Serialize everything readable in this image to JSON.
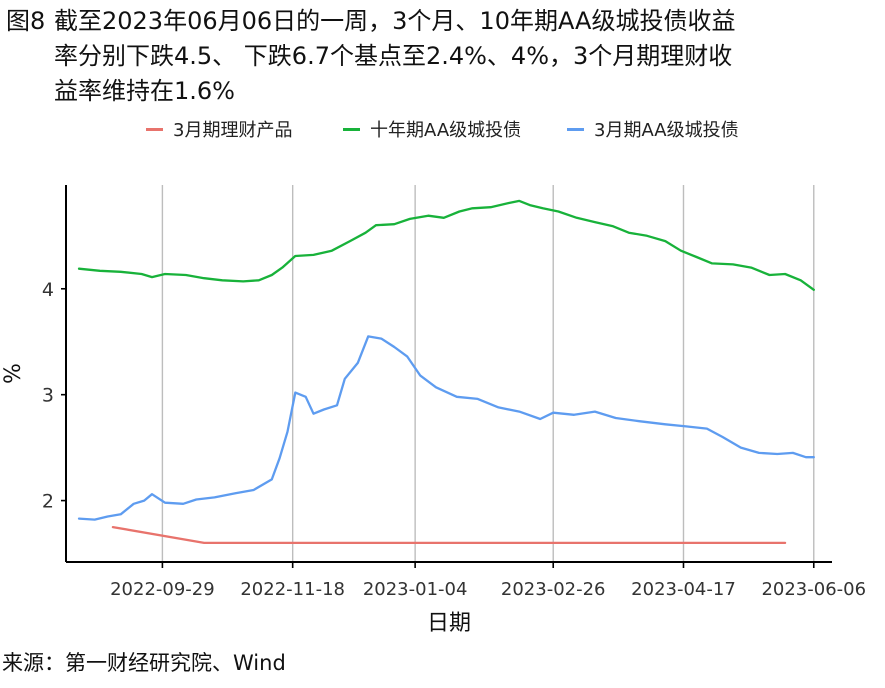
{
  "title": {
    "fig_num": "图8",
    "line1": "截至2023年06月06日的一周，3个月、10年期AA级城投债收益",
    "line2": "率分别下跌4.5、 下跌6.7个基点至2.4%、4%，3个月期理财收",
    "line3": "益率维持在1.6%"
  },
  "source": "来源：第一财经研究院、Wind",
  "chart_data": {
    "type": "line",
    "xlabel": "日期",
    "ylabel": "%",
    "x_ticks": [
      "2022-09-29",
      "2022-11-18",
      "2023-01-04",
      "2023-02-26",
      "2023-04-17",
      "2023-06-06"
    ],
    "y_ticks": [
      2,
      3,
      4
    ],
    "ylim": [
      1.42,
      4.98
    ],
    "xlim": [
      "2022-08-23",
      "2023-06-13"
    ],
    "grid": "vertical at x ticks",
    "legend_position": "top",
    "series": [
      {
        "name": "3月期理财产品",
        "color": "#E8736C",
        "points": [
          [
            "2022-09-10",
            1.75
          ],
          [
            "2022-10-15",
            1.6
          ],
          [
            "2023-05-26",
            1.6
          ]
        ]
      },
      {
        "name": "十年期AA级城投债",
        "color": "#18B23A",
        "points": [
          [
            "2022-08-28",
            4.19
          ],
          [
            "2022-09-05",
            4.17
          ],
          [
            "2022-09-13",
            4.16
          ],
          [
            "2022-09-21",
            4.14
          ],
          [
            "2022-09-25",
            4.11
          ],
          [
            "2022-09-30",
            4.14
          ],
          [
            "2022-10-08",
            4.13
          ],
          [
            "2022-10-15",
            4.1
          ],
          [
            "2022-10-22",
            4.08
          ],
          [
            "2022-10-30",
            4.07
          ],
          [
            "2022-11-05",
            4.08
          ],
          [
            "2022-11-10",
            4.13
          ],
          [
            "2022-11-14",
            4.2
          ],
          [
            "2022-11-19",
            4.31
          ],
          [
            "2022-11-26",
            4.32
          ],
          [
            "2022-12-03",
            4.36
          ],
          [
            "2022-12-10",
            4.45
          ],
          [
            "2022-12-16",
            4.53
          ],
          [
            "2022-12-20",
            4.6
          ],
          [
            "2022-12-27",
            4.61
          ],
          [
            "2023-01-02",
            4.66
          ],
          [
            "2023-01-09",
            4.69
          ],
          [
            "2023-01-15",
            4.67
          ],
          [
            "2023-01-21",
            4.73
          ],
          [
            "2023-01-26",
            4.76
          ],
          [
            "2023-02-02",
            4.77
          ],
          [
            "2023-02-09",
            4.81
          ],
          [
            "2023-02-13",
            4.83
          ],
          [
            "2023-02-17",
            4.79
          ],
          [
            "2023-02-22",
            4.76
          ],
          [
            "2023-02-28",
            4.73
          ],
          [
            "2023-03-07",
            4.67
          ],
          [
            "2023-03-14",
            4.63
          ],
          [
            "2023-03-21",
            4.59
          ],
          [
            "2023-03-27",
            4.53
          ],
          [
            "2023-04-03",
            4.5
          ],
          [
            "2023-04-10",
            4.45
          ],
          [
            "2023-04-16",
            4.36
          ],
          [
            "2023-04-22",
            4.3
          ],
          [
            "2023-04-28",
            4.24
          ],
          [
            "2023-05-06",
            4.23
          ],
          [
            "2023-05-13",
            4.2
          ],
          [
            "2023-05-20",
            4.13
          ],
          [
            "2023-05-26",
            4.14
          ],
          [
            "2023-06-01",
            4.08
          ],
          [
            "2023-06-06",
            3.99
          ]
        ]
      },
      {
        "name": "3月期AA级城投债",
        "color": "#5E9CF0",
        "points": [
          [
            "2022-08-28",
            1.83
          ],
          [
            "2022-09-03",
            1.82
          ],
          [
            "2022-09-08",
            1.85
          ],
          [
            "2022-09-13",
            1.87
          ],
          [
            "2022-09-18",
            1.97
          ],
          [
            "2022-09-22",
            2.0
          ],
          [
            "2022-09-25",
            2.06
          ],
          [
            "2022-09-30",
            1.98
          ],
          [
            "2022-10-07",
            1.97
          ],
          [
            "2022-10-12",
            2.01
          ],
          [
            "2022-10-19",
            2.03
          ],
          [
            "2022-10-27",
            2.07
          ],
          [
            "2022-11-03",
            2.1
          ],
          [
            "2022-11-10",
            2.2
          ],
          [
            "2022-11-13",
            2.4
          ],
          [
            "2022-11-16",
            2.65
          ],
          [
            "2022-11-19",
            3.02
          ],
          [
            "2022-11-23",
            2.98
          ],
          [
            "2022-11-26",
            2.82
          ],
          [
            "2022-11-30",
            2.86
          ],
          [
            "2022-12-05",
            2.9
          ],
          [
            "2022-12-08",
            3.15
          ],
          [
            "2022-12-13",
            3.3
          ],
          [
            "2022-12-17",
            3.55
          ],
          [
            "2022-12-22",
            3.53
          ],
          [
            "2022-12-27",
            3.45
          ],
          [
            "2023-01-01",
            3.36
          ],
          [
            "2023-01-06",
            3.18
          ],
          [
            "2023-01-12",
            3.07
          ],
          [
            "2023-01-20",
            2.98
          ],
          [
            "2023-01-28",
            2.96
          ],
          [
            "2023-02-05",
            2.88
          ],
          [
            "2023-02-13",
            2.84
          ],
          [
            "2023-02-21",
            2.77
          ],
          [
            "2023-02-26",
            2.83
          ],
          [
            "2023-03-06",
            2.81
          ],
          [
            "2023-03-14",
            2.84
          ],
          [
            "2023-03-22",
            2.78
          ],
          [
            "2023-03-31",
            2.75
          ],
          [
            "2023-04-10",
            2.72
          ],
          [
            "2023-04-18",
            2.7
          ],
          [
            "2023-04-26",
            2.68
          ],
          [
            "2023-05-02",
            2.6
          ],
          [
            "2023-05-09",
            2.5
          ],
          [
            "2023-05-16",
            2.45
          ],
          [
            "2023-05-23",
            2.44
          ],
          [
            "2023-05-29",
            2.45
          ],
          [
            "2023-06-03",
            2.41
          ],
          [
            "2023-06-06",
            2.41
          ]
        ]
      }
    ]
  }
}
